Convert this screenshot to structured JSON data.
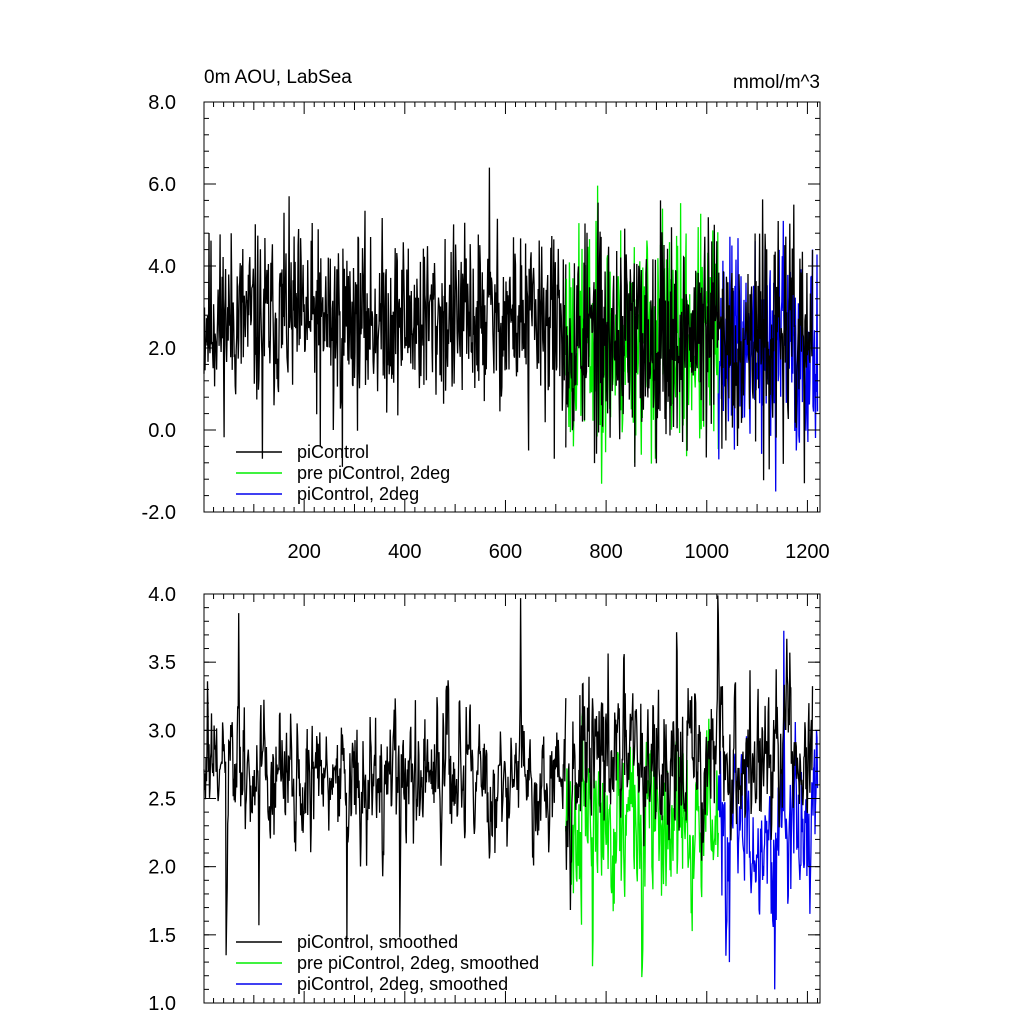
{
  "colors": {
    "piControl": "#000000",
    "pre_piControl_2deg": "#00ee00",
    "piControl_2deg": "#0000ee"
  },
  "chart_data": [
    {
      "type": "line",
      "title": "0m AOU, LabSea",
      "units": "mmol/m^3",
      "xlim": [
        1,
        1225
      ],
      "ylim": [
        -2.0,
        8.0
      ],
      "xticks": [
        200,
        400,
        600,
        800,
        1000,
        1200
      ],
      "xtick_labels": [
        "200",
        "400",
        "600",
        "800",
        "1000",
        "1200"
      ],
      "yticks": [
        -2.0,
        0.0,
        2.0,
        4.0,
        6.0,
        8.0
      ],
      "ytick_labels": [
        "-2.0",
        "0.0",
        "2.0",
        "4.0",
        "6.0",
        "8.0"
      ],
      "legend": "bottom-left",
      "series": [
        {
          "name": "piControl",
          "color_key": "piControl",
          "x_range": [
            1,
            720
          ],
          "mean": 2.7,
          "amp": 1.05,
          "seed": 11,
          "spikes": [
            [
              568,
              6.4
            ],
            [
              258,
              0.0
            ],
            [
              232,
              -0.4
            ],
            [
              276,
              -0.9
            ],
            [
              646,
              -0.5
            ],
            [
              697,
              -0.7
            ],
            [
              160,
              5.3
            ],
            [
              117,
              -0.7
            ]
          ]
        },
        {
          "name": "pre piControl, 2deg",
          "color_key": "pre_piControl_2deg",
          "x_range": [
            720,
            1023
          ],
          "mean": 2.2,
          "amp": 1.35,
          "seed": 23,
          "spikes": [
            [
              780,
              5.1
            ],
            [
              898,
              -0.7
            ],
            [
              912,
              5.4
            ],
            [
              735,
              -0.4
            ]
          ]
        },
        {
          "name": "piControl, 2deg",
          "color_key": "piControl_2deg",
          "x_range": [
            1023,
            1220
          ],
          "mean": 2.0,
          "amp": 1.2,
          "seed": 37,
          "spikes": [
            [
              1137,
              -1.5
            ],
            [
              1152,
              5.1
            ],
            [
              1050,
              4.5
            ],
            [
              1178,
              -0.5
            ]
          ]
        },
        {
          "name": "",
          "overlay_of": "piControl",
          "color_key": "piControl",
          "x_range": [
            720,
            1210
          ],
          "mean": 2.3,
          "amp": 1.3,
          "seed": 53,
          "spikes": [
            [
              908,
              5.6
            ],
            [
              857,
              -0.9
            ],
            [
              1194,
              -1.3
            ],
            [
              1010,
              4.6
            ]
          ]
        }
      ]
    },
    {
      "type": "line",
      "title": "",
      "xlim": [
        1,
        1225
      ],
      "ylim": [
        1.0,
        4.0
      ],
      "yticks": [
        1.0,
        1.5,
        2.0,
        2.5,
        3.0,
        3.5,
        4.0
      ],
      "ytick_labels": [
        "1.0",
        "1.5",
        "2.0",
        "2.5",
        "3.0",
        "3.5",
        "4.0"
      ],
      "legend": "bottom-left",
      "series": [
        {
          "name": "piControl, smoothed",
          "color_key": "piControl",
          "x_range": [
            1,
            720
          ],
          "mean": 2.65,
          "amp": 0.45,
          "seed": 61,
          "spikes": [
            [
              70,
              3.86
            ],
            [
              45,
              1.35
            ],
            [
              630,
              3.97
            ],
            [
              285,
              1.45
            ],
            [
              390,
              1.48
            ],
            [
              8,
              3.36
            ],
            [
              110,
              1.57
            ]
          ]
        },
        {
          "name": "pre piControl, 2deg, smoothed",
          "color_key": "pre_piControl_2deg",
          "x_range": [
            720,
            1023
          ],
          "mean": 2.3,
          "amp": 0.55,
          "seed": 71,
          "spikes": [
            [
              773,
              1.27
            ],
            [
              871,
              1.19
            ],
            [
              752,
              3.1
            ],
            [
              1000,
              3.0
            ]
          ]
        },
        {
          "name": "piControl, 2deg, smoothed",
          "color_key": "piControl_2deg",
          "x_range": [
            1023,
            1220
          ],
          "mean": 2.3,
          "amp": 0.55,
          "seed": 83,
          "spikes": [
            [
              1153,
              3.73
            ],
            [
              1135,
              1.1
            ],
            [
              1045,
              1.3
            ]
          ]
        },
        {
          "name": "",
          "overlay_of": "piControl, smoothed",
          "color_key": "piControl",
          "x_range": [
            720,
            1210
          ],
          "mean": 2.75,
          "amp": 0.55,
          "seed": 97,
          "spikes": [
            [
              1022,
              3.99
            ],
            [
              940,
              3.72
            ],
            [
              1165,
              3.57
            ],
            [
              1203,
              3.2
            ]
          ]
        }
      ]
    }
  ]
}
